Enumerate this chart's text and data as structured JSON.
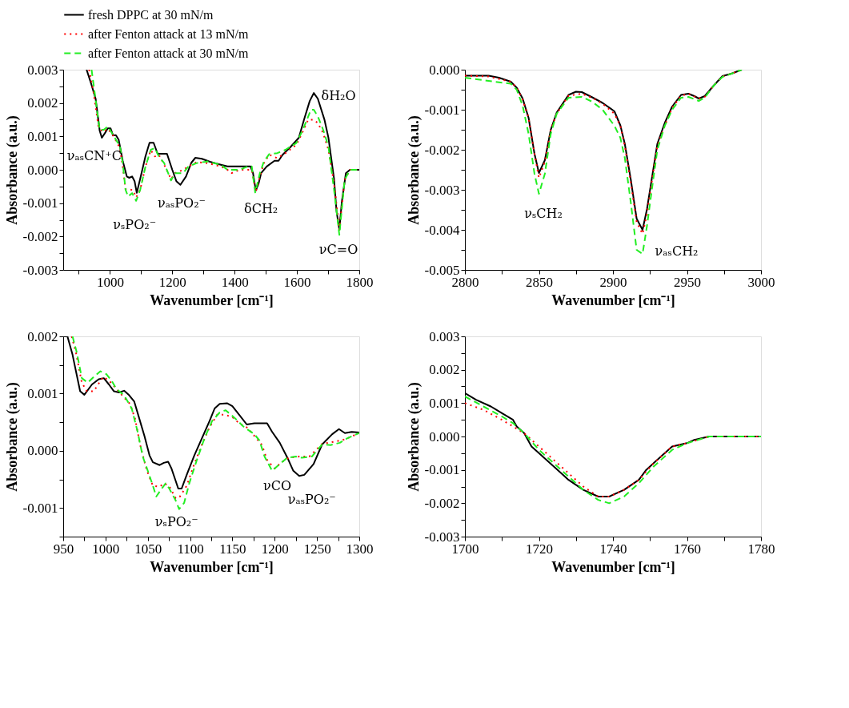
{
  "chart_data": [
    {
      "type": "line",
      "xlabel": "Wavenumber [cm⁻¹]",
      "ylabel": "Absorbance (a.u.)",
      "legend": "top",
      "grid": false,
      "marker": "none",
      "xlim": [
        850,
        1800
      ],
      "xticks": [
        {
          "value": 900,
          "label": null
        },
        1000,
        {
          "value": 1100,
          "label": null
        },
        1200,
        {
          "value": 1300,
          "label": null
        },
        1400,
        {
          "value": 1500,
          "label": null
        },
        1600,
        {
          "value": 1700,
          "label": null
        },
        1800
      ],
      "ylim": [
        -0.003,
        0.003
      ],
      "yticks": [
        -0.003,
        {
          "value": -0.0025,
          "label": null
        },
        -0.002,
        {
          "value": -0.0015,
          "label": null
        },
        -0.001,
        {
          "value": -0.0005,
          "label": null
        },
        {
          "value": 0,
          "label": "0.000"
        },
        {
          "value": 0.0005,
          "label": null
        },
        0.001,
        {
          "value": 0.0015,
          "label": null
        },
        0.002,
        {
          "value": 0.0025,
          "label": null
        },
        0.003
      ],
      "annotations": [
        "νₐₛCN⁺C",
        "νₛPO₂⁻",
        "νₐₛPO₂⁻",
        "δCH₂",
        "δH₂O",
        "νC=O"
      ],
      "series": [
        {
          "name": "fresh DPPC at 30 mN/m",
          "color": "#000000",
          "line_style": "solid",
          "x": [
            925,
            941,
            954,
            967,
            974,
            984,
            993,
            1002,
            1010,
            1019,
            1028,
            1041,
            1054,
            1062,
            1071,
            1079,
            1086,
            1097,
            1114,
            1127,
            1140,
            1153,
            1166,
            1183,
            1200,
            1213,
            1226,
            1244,
            1261,
            1274,
            1295,
            1321,
            1356,
            1377,
            1386,
            1425,
            1451,
            1459,
            1468,
            1477,
            1485,
            1503,
            1528,
            1541,
            1554,
            1580,
            1606,
            1623,
            1641,
            1654,
            1667,
            1688,
            1701,
            1719,
            1727,
            1736,
            1744,
            1757,
            1770,
            1787,
            1800
          ],
          "values": [
            0.003,
            0.00254,
            0.00213,
            0.00117,
            0.00096,
            0.0011,
            0.00124,
            0.00124,
            0.00103,
            0.00104,
            0.0009,
            0.00027,
            -0.0002,
            -0.00024,
            -0.0002,
            -0.00034,
            -0.00069,
            -0.00027,
            0.00041,
            0.00081,
            0.00081,
            0.00048,
            0.00048,
            0.00048,
            0,
            -0.00034,
            -0.00045,
            -0.0002,
            0.00021,
            0.00036,
            0.00033,
            0.00024,
            0.00015,
            0.0001,
            0.0001,
            0.0001,
            0.0001,
            -0.0001,
            -0.00062,
            -0.00041,
            -0.0001,
            0.0001,
            0.00027,
            0.00027,
            0.00045,
            0.00069,
            0.00096,
            0.00151,
            0.00206,
            0.0023,
            0.00213,
            0.00151,
            0.00096,
            -0.00027,
            -0.00124,
            -0.00179,
            -0.00096,
            -0.0001,
            0,
            0,
            0
          ]
        },
        {
          "name": "after Fenton attack at 13 mN/m",
          "color": "#ff0000",
          "line_style": "dotted",
          "x": [
            933,
            946,
            963,
            976,
            993,
            1010,
            1032,
            1041,
            1050,
            1062,
            1075,
            1084,
            1097,
            1114,
            1131,
            1144,
            1157,
            1174,
            1196,
            1209,
            1235,
            1252,
            1278,
            1313,
            1356,
            1377,
            1390,
            1416,
            1442,
            1455,
            1468,
            1481,
            1494,
            1511,
            1537,
            1563,
            1598,
            1619,
            1636,
            1654,
            1667,
            1684,
            1701,
            1719,
            1736,
            1753,
            1770,
            1800
          ],
          "values": [
            0.003,
            0.0024,
            0.0013,
            0.00113,
            0.00123,
            0.00103,
            0.00065,
            0.0001,
            -0.00058,
            -0.00058,
            -0.00062,
            -0.00083,
            -0.0006,
            0.0001,
            0.00059,
            0.0004,
            0.00045,
            0.00015,
            -0.00028,
            -0.0001,
            0,
            0.0001,
            0.00023,
            0.0002,
            0.0001,
            0,
            -0.0001,
            0,
            0,
            0,
            -0.00066,
            -0.0002,
            0.0002,
            0.00045,
            0.00035,
            0.0005,
            0.00075,
            0.00115,
            0.0015,
            0.0015,
            0.0014,
            0.0011,
            0.0006,
            -0.0004,
            -0.0018,
            -0.0003,
            0,
            0
          ]
        },
        {
          "name": "after Fenton attack at 30 mN/m",
          "color": "#22ee22",
          "line_style": "dashed",
          "x": [
            941,
            954,
            967,
            980,
            993,
            1010,
            1032,
            1041,
            1050,
            1058,
            1071,
            1084,
            1097,
            1114,
            1131,
            1144,
            1157,
            1174,
            1196,
            1209,
            1235,
            1252,
            1278,
            1313,
            1356,
            1377,
            1390,
            1416,
            1442,
            1455,
            1466,
            1481,
            1494,
            1511,
            1537,
            1563,
            1598,
            1619,
            1645,
            1654,
            1667,
            1684,
            1701,
            1719,
            1736,
            1753,
            1770,
            1800
          ],
          "values": [
            0.003,
            0.0021,
            0.0012,
            0.0012,
            0.0013,
            0.00105,
            0.0007,
            0.0002,
            -0.0006,
            -0.0008,
            -0.0007,
            -0.00093,
            -0.0006,
            0.0001,
            0.0006,
            0.00065,
            0.0004,
            0.0002,
            -0.00032,
            -0.0001,
            -0.0001,
            0.0001,
            0.0002,
            0.00025,
            0.00015,
            0,
            0,
            0,
            0.0001,
            0.0001,
            -0.00068,
            -0.0001,
            0.00025,
            0.00047,
            0.0005,
            0.0006,
            0.0008,
            0.0012,
            0.0018,
            0.0018,
            0.0016,
            0.0012,
            0.0007,
            -0.0006,
            -0.00195,
            -0.0003,
            0,
            0
          ]
        }
      ]
    },
    {
      "type": "line",
      "xlabel": "Wavenumber [cm⁻¹]",
      "ylabel": "Absorbance (a.u.)",
      "legend": "top",
      "grid": false,
      "marker": "none",
      "xlim": [
        2800,
        3000
      ],
      "xticks": [
        2800,
        {
          "value": 2825,
          "label": null
        },
        2850,
        {
          "value": 2875,
          "label": null
        },
        2900,
        {
          "value": 2925,
          "label": null
        },
        2950,
        {
          "value": 2975,
          "label": null
        },
        3000
      ],
      "ylim": [
        -0.005,
        0
      ],
      "yticks": [
        -0.005,
        {
          "value": -0.0045,
          "label": null
        },
        -0.004,
        {
          "value": -0.0035,
          "label": null
        },
        -0.003,
        {
          "value": -0.0025,
          "label": null
        },
        -0.002,
        {
          "value": -0.0015,
          "label": null
        },
        -0.001,
        {
          "value": -0.0005,
          "label": null
        },
        {
          "value": 0,
          "label": "0.000"
        }
      ],
      "annotations": [
        "νₛCH₂",
        "νₐₛCH₂"
      ],
      "series": [
        {
          "name": "fresh DPPC at 30 mN/m",
          "color": "#000000",
          "line_style": "solid",
          "x": [
            2800,
            2816,
            2823,
            2831,
            2835,
            2839,
            2843,
            2847,
            2850,
            2854,
            2858,
            2862,
            2870,
            2875,
            2879,
            2886,
            2893,
            2901,
            2905,
            2908,
            2912,
            2916,
            2920,
            2923,
            2927,
            2930,
            2935,
            2940,
            2946,
            2951,
            2955,
            2958,
            2962,
            2968,
            2974,
            2980,
            2987
          ],
          "values": [
            -0.00015,
            -0.00015,
            -0.0002,
            -0.0003,
            -0.00045,
            -0.00072,
            -0.0012,
            -0.0021,
            -0.00258,
            -0.00226,
            -0.0015,
            -0.00107,
            -0.00063,
            -0.00055,
            -0.00056,
            -0.00069,
            -0.00083,
            -0.00104,
            -0.00139,
            -0.00185,
            -0.00273,
            -0.00372,
            -0.004,
            -0.00348,
            -0.00255,
            -0.00185,
            -0.00133,
            -0.00092,
            -0.00063,
            -0.0006,
            -0.00066,
            -0.00072,
            -0.00066,
            -0.0004,
            -0.00016,
            -0.0001,
            0
          ]
        },
        {
          "name": "after Fenton attack at 13 mN/m",
          "color": "#ff0000",
          "line_style": "dotted",
          "x": [
            2800,
            2816,
            2831,
            2835,
            2839,
            2843,
            2847,
            2850,
            2854,
            2858,
            2862,
            2870,
            2879,
            2886,
            2893,
            2901,
            2905,
            2908,
            2912,
            2916,
            2920,
            2923,
            2927,
            2930,
            2935,
            2940,
            2946,
            2951,
            2958,
            2962,
            2968,
            2974,
            2980,
            2987
          ],
          "values": [
            -0.00015,
            -0.00017,
            -0.0003,
            -0.00045,
            -0.00075,
            -0.0012,
            -0.0021,
            -0.0027,
            -0.0023,
            -0.0015,
            -0.0011,
            -0.00065,
            -0.0006,
            -0.0007,
            -0.00085,
            -0.0011,
            -0.0014,
            -0.0019,
            -0.0028,
            -0.0038,
            -0.0041,
            -0.0036,
            -0.0026,
            -0.0019,
            -0.0014,
            -0.00095,
            -0.00065,
            -0.0006,
            -0.00072,
            -0.00068,
            -0.0004,
            -0.00017,
            -0.0001,
            0
          ]
        },
        {
          "name": "after Fenton attack at 30 mN/m",
          "color": "#22ee22",
          "line_style": "dashed",
          "x": [
            2800,
            2816,
            2831,
            2835,
            2839,
            2843,
            2847,
            2850,
            2854,
            2858,
            2862,
            2870,
            2879,
            2886,
            2893,
            2901,
            2905,
            2908,
            2912,
            2916,
            2920,
            2923,
            2927,
            2930,
            2935,
            2940,
            2946,
            2951,
            2958,
            2962,
            2968,
            2974,
            2980,
            2987
          ],
          "values": [
            -0.0002,
            -0.00028,
            -0.00035,
            -0.0005,
            -0.0009,
            -0.0016,
            -0.0026,
            -0.0031,
            -0.0026,
            -0.0016,
            -0.0011,
            -0.0007,
            -0.00068,
            -0.0008,
            -0.001,
            -0.0014,
            -0.0017,
            -0.0022,
            -0.0033,
            -0.0045,
            -0.0046,
            -0.0039,
            -0.0028,
            -0.002,
            -0.0014,
            -0.001,
            -0.0007,
            -0.00068,
            -0.00078,
            -0.0007,
            -0.0004,
            -0.00018,
            -0.0001,
            0
          ]
        }
      ]
    },
    {
      "type": "line",
      "xlabel": "Wavenumber [cm⁻¹]",
      "ylabel": "Absorbance (a.u.)",
      "legend": "top",
      "grid": false,
      "marker": "none",
      "xlim": [
        950,
        1300
      ],
      "xticks": [
        950,
        {
          "value": 975,
          "label": null
        },
        1000,
        {
          "value": 1025,
          "label": null
        },
        1050,
        {
          "value": 1075,
          "label": null
        },
        1100,
        {
          "value": 1125,
          "label": null
        },
        1150,
        {
          "value": 1175,
          "label": null
        },
        1200,
        {
          "value": 1225,
          "label": null
        },
        1250,
        {
          "value": 1275,
          "label": null
        },
        1300
      ],
      "ylim": [
        -0.0015,
        0.002
      ],
      "yticks": [
        {
          "value": -0.0015,
          "label": null
        },
        -0.001,
        {
          "value": -0.0005,
          "label": null
        },
        {
          "value": 0,
          "label": "0.000"
        },
        {
          "value": 0.0005,
          "label": null
        },
        0.001,
        {
          "value": 0.0015,
          "label": null
        },
        0.002
      ],
      "annotations": [
        "νₛPO₂⁻",
        "νCO",
        "νₐₛPO₂⁻"
      ],
      "series": [
        {
          "name": "fresh DPPC at 30 mN/m",
          "color": "#000000",
          "line_style": "solid",
          "x": [
            950,
            955,
            961,
            970,
            975,
            984,
            992,
            998,
            1004,
            1010,
            1016,
            1022,
            1028,
            1034,
            1040,
            1046,
            1052,
            1056,
            1064,
            1069,
            1074,
            1078,
            1086,
            1090,
            1096,
            1105,
            1114,
            1123,
            1129,
            1135,
            1144,
            1150,
            1158,
            1167,
            1176,
            1191,
            1197,
            1206,
            1215,
            1222,
            1229,
            1235,
            1246,
            1256,
            1268,
            1276,
            1283,
            1291,
            1300
          ],
          "values": [
            0.002,
            0.002,
            0.00168,
            0.00104,
            0.00098,
            0.00116,
            0.00125,
            0.00127,
            0.00116,
            0.00104,
            0.00102,
            0.00105,
            0.00097,
            0.00086,
            0.00056,
            0.00026,
            -8e-05,
            -0.0002,
            -0.00025,
            -0.00021,
            -0.00019,
            -0.00031,
            -0.00066,
            -0.00066,
            -0.00042,
            -8e-05,
            0.00022,
            0.00052,
            0.00074,
            0.00082,
            0.00083,
            0.00078,
            0.00063,
            0.00046,
            0.00048,
            0.00048,
            0.00033,
            0.00014,
            -0.00012,
            -0.00035,
            -0.00044,
            -0.00042,
            -0.00023,
            0.00011,
            0.00029,
            0.00038,
            0.00031,
            0.00033,
            0.00032
          ]
        },
        {
          "name": "after Fenton attack at 13 mN/m",
          "color": "#ff0000",
          "line_style": "dotted",
          "x": [
            960,
            965,
            972,
            978,
            986,
            997,
            1004,
            1013,
            1022,
            1029,
            1035,
            1041,
            1049,
            1056,
            1064,
            1069,
            1075,
            1083,
            1088,
            1096,
            1105,
            1114,
            1123,
            1132,
            1141,
            1150,
            1158,
            1167,
            1176,
            1185,
            1191,
            1200,
            1208,
            1217,
            1229,
            1241,
            1256,
            1271,
            1283,
            1300
          ],
          "values": [
            0.002,
            0.00172,
            0.00119,
            0.00104,
            0.00104,
            0.00129,
            0.00123,
            0.00108,
            0.00093,
            0.00082,
            0.00056,
            0.0001,
            -0.00035,
            -0.00061,
            -0.00063,
            -0.00057,
            -0.00061,
            -0.00083,
            -0.0008,
            -0.00061,
            -0.00023,
            0.00011,
            0.00041,
            0.00063,
            0.00063,
            0.00059,
            0.00048,
            0.00041,
            0.00026,
            0.0001,
            -0.00016,
            -0.00031,
            -0.0002,
            -0.00012,
            -0.0001,
            -0.0001,
            0.00012,
            0.00016,
            0.0002,
            0.00031
          ]
        },
        {
          "name": "after Fenton attack at 30 mN/m",
          "color": "#22ee22",
          "line_style": "dashed",
          "x": [
            961,
            966,
            972,
            979,
            986,
            994,
            1001,
            1007,
            1013,
            1022,
            1031,
            1038,
            1044,
            1050,
            1056,
            1060,
            1067,
            1071,
            1075,
            1083,
            1087,
            1093,
            1099,
            1108,
            1117,
            1126,
            1135,
            1142,
            1153,
            1164,
            1176,
            1182,
            1188,
            1197,
            1206,
            1215,
            1225,
            1232,
            1244,
            1256,
            1266,
            1277,
            1286,
            1300
          ],
          "values": [
            0.002,
            0.00172,
            0.00127,
            0.00119,
            0.00129,
            0.00139,
            0.00134,
            0.00123,
            0.00108,
            0.00097,
            0.00074,
            0.00033,
            -0.0001,
            -0.00035,
            -0.00061,
            -0.0008,
            -0.00065,
            -0.00057,
            -0.00065,
            -0.00087,
            -0.00102,
            -0.00091,
            -0.00057,
            -0.00016,
            0.00022,
            0.00052,
            0.00067,
            0.00071,
            0.00057,
            0.00041,
            0.00029,
            0.00018,
            -0.0001,
            -0.00035,
            -0.00023,
            -0.00012,
            -0.0001,
            -0.00012,
            -0.0001,
            0.00011,
            0.0001,
            0.00014,
            0.00022,
            0.00031
          ]
        }
      ]
    },
    {
      "type": "line",
      "xlabel": "Wavenumber [cm⁻¹]",
      "ylabel": "Absorbance (a.u.)",
      "legend": "top",
      "grid": false,
      "marker": "none",
      "xlim": [
        1700,
        1780
      ],
      "xticks": [
        1700,
        {
          "value": 1710,
          "label": null
        },
        1720,
        {
          "value": 1730,
          "label": null
        },
        1740,
        {
          "value": 1750,
          "label": null
        },
        1760,
        {
          "value": 1770,
          "label": null
        },
        1780
      ],
      "ylim": [
        -0.003,
        0.003
      ],
      "yticks": [
        -0.003,
        {
          "value": -0.0025,
          "label": null
        },
        -0.002,
        {
          "value": -0.0015,
          "label": null
        },
        -0.001,
        {
          "value": -0.0005,
          "label": null
        },
        {
          "value": 0,
          "label": "0.000"
        },
        {
          "value": 0.0005,
          "label": null
        },
        0.001,
        {
          "value": 0.0015,
          "label": null
        },
        0.002,
        {
          "value": 0.0025,
          "label": null
        },
        0.003
      ],
      "series": [
        {
          "name": "fresh DPPC at 30 mN/m",
          "color": "#000000",
          "line_style": "solid",
          "x": [
            1700,
            1703,
            1707,
            1710,
            1713,
            1714,
            1716,
            1718,
            1720,
            1723,
            1726,
            1728,
            1732,
            1736,
            1737,
            1739,
            1743,
            1747,
            1749,
            1751,
            1754,
            1756,
            1760,
            1762,
            1766,
            1770,
            1775,
            1780
          ],
          "values": [
            0.0013,
            0.0011,
            0.0009,
            0.0007,
            0.0005,
            0.0003,
            0.0001,
            -0.0003,
            -0.0005,
            -0.0008,
            -0.0011,
            -0.0013,
            -0.0016,
            -0.0018,
            -0.0018,
            -0.0018,
            -0.0016,
            -0.0013,
            -0.001,
            -0.0008,
            -0.0005,
            -0.0003,
            -0.0002,
            -0.0001,
            0,
            0,
            0,
            0
          ]
        },
        {
          "name": "after Fenton attack at 13 mN/m",
          "color": "#ff0000",
          "line_style": "dotted",
          "x": [
            1700,
            1705,
            1710,
            1713,
            1716,
            1720,
            1724,
            1728,
            1732,
            1736,
            1739,
            1743,
            1747,
            1751,
            1756,
            1760,
            1766,
            1770,
            1775,
            1780
          ],
          "values": [
            0.001,
            0.0008,
            0.0005,
            0.0003,
            0.0001,
            -0.0003,
            -0.0007,
            -0.0011,
            -0.0015,
            -0.0018,
            -0.0018,
            -0.0016,
            -0.0013,
            -0.0008,
            -0.0003,
            -0.0002,
            0,
            0,
            0,
            0
          ]
        },
        {
          "name": "after Fenton attack at 30 mN/m",
          "color": "#22ee22",
          "line_style": "dashed",
          "x": [
            1700,
            1705,
            1710,
            1713,
            1716,
            1720,
            1724,
            1728,
            1732,
            1736,
            1739,
            1743,
            1747,
            1751,
            1756,
            1760,
            1766,
            1770,
            1775,
            1780
          ],
          "values": [
            0.0012,
            0.0009,
            0.0006,
            0.0004,
            0.0001,
            -0.0004,
            -0.0008,
            -0.0012,
            -0.0016,
            -0.0019,
            -0.002,
            -0.0018,
            -0.0014,
            -0.0009,
            -0.0004,
            -0.0002,
            0,
            0,
            0,
            0
          ]
        }
      ]
    }
  ]
}
